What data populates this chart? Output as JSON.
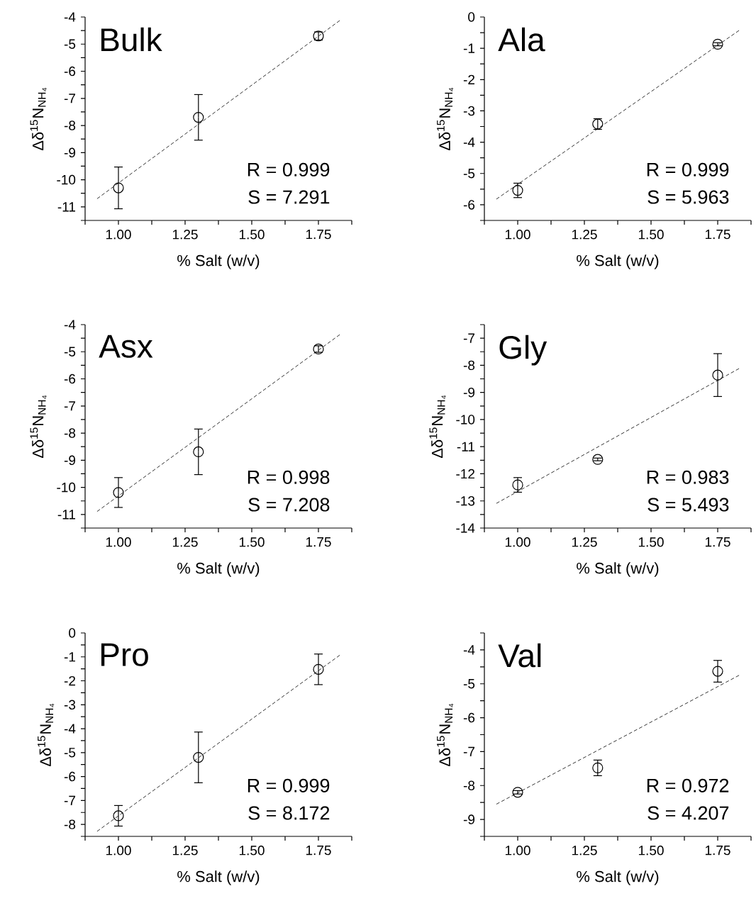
{
  "chart_data": [
    {
      "type": "scatter",
      "title": "Bulk",
      "xlabel": "% Salt (w/v)",
      "ylabel": "Δδ$^{15}$N$_{NH₄}$",
      "annotations": [
        "R = 0.999",
        "S = 7.291"
      ],
      "xlim": [
        0.875,
        1.875
      ],
      "xticks": [
        {
          "value": 0.875,
          "label": null
        },
        {
          "value": 1.0,
          "label": "1.00"
        },
        {
          "value": 1.125,
          "label": null
        },
        {
          "value": 1.25,
          "label": "1.25"
        },
        {
          "value": 1.375,
          "label": null
        },
        {
          "value": 1.5,
          "label": "1.50"
        },
        {
          "value": 1.625,
          "label": null
        },
        {
          "value": 1.75,
          "label": "1.75"
        },
        {
          "value": 1.875,
          "label": null
        }
      ],
      "ylim": [
        -11.5,
        -4
      ],
      "yticks": [
        {
          "value": -11.5,
          "label": null
        },
        -11,
        {
          "value": -10.5,
          "label": null
        },
        -10,
        {
          "value": -9.5,
          "label": null
        },
        -9,
        {
          "value": -8.5,
          "label": null
        },
        -8,
        {
          "value": -7.5,
          "label": null
        },
        -7,
        {
          "value": -6.5,
          "label": null
        },
        -6,
        {
          "value": -5.5,
          "label": null
        },
        -5,
        {
          "value": -4.5,
          "label": null
        },
        -4
      ],
      "series": [
        {
          "type": "scatter",
          "color": "#000000",
          "marker": "circle",
          "x": [
            1.0,
            1.3,
            1.75
          ],
          "values": [
            -10.3,
            -7.7,
            -4.7
          ],
          "errors": [
            0.77,
            0.84,
            0.15
          ]
        },
        {
          "type": "line",
          "color": "#000000",
          "line_style": "dashed",
          "x": [
            0.92,
            1.83
          ],
          "values": [
            -10.7,
            -4.13
          ]
        }
      ]
    },
    {
      "type": "scatter",
      "title": "Ala",
      "xlabel": "% Salt (w/v)",
      "ylabel": "Δδ$^{15}$N$_{NH₄}$",
      "annotations": [
        "R = 0.999",
        "S = 5.963"
      ],
      "xlim": [
        0.875,
        1.875
      ],
      "xticks": [
        {
          "value": 0.875,
          "label": null
        },
        {
          "value": 1.0,
          "label": "1.00"
        },
        {
          "value": 1.125,
          "label": null
        },
        {
          "value": 1.25,
          "label": "1.25"
        },
        {
          "value": 1.375,
          "label": null
        },
        {
          "value": 1.5,
          "label": "1.50"
        },
        {
          "value": 1.625,
          "label": null
        },
        {
          "value": 1.75,
          "label": "1.75"
        },
        {
          "value": 1.875,
          "label": null
        }
      ],
      "ylim": [
        -6.5,
        0
      ],
      "yticks": [
        {
          "value": -6.5,
          "label": null
        },
        -6,
        {
          "value": -5.5,
          "label": null
        },
        -5,
        {
          "value": -4.5,
          "label": null
        },
        -4,
        {
          "value": -3.5,
          "label": null
        },
        -3,
        {
          "value": -2.5,
          "label": null
        },
        -2,
        {
          "value": -1.5,
          "label": null
        },
        -1,
        {
          "value": -0.5,
          "label": null
        },
        0
      ],
      "series": [
        {
          "type": "scatter",
          "color": "#000000",
          "marker": "circle",
          "x": [
            1.0,
            1.3,
            1.75
          ],
          "values": [
            -5.54,
            -3.42,
            -0.87
          ],
          "errors": [
            0.23,
            0.17,
            0.05
          ]
        },
        {
          "type": "line",
          "color": "#000000",
          "line_style": "dashed",
          "x": [
            0.92,
            1.83
          ],
          "values": [
            -5.82,
            -0.43
          ]
        }
      ]
    },
    {
      "type": "scatter",
      "title": "Asx",
      "xlabel": "% Salt (w/v)",
      "ylabel": "Δδ$^{15}$N$_{NH₄}$",
      "annotations": [
        "R = 0.998",
        "S = 7.208"
      ],
      "xlim": [
        0.875,
        1.875
      ],
      "xticks": [
        {
          "value": 0.875,
          "label": null
        },
        {
          "value": 1.0,
          "label": "1.00"
        },
        {
          "value": 1.125,
          "label": null
        },
        {
          "value": 1.25,
          "label": "1.25"
        },
        {
          "value": 1.375,
          "label": null
        },
        {
          "value": 1.5,
          "label": "1.50"
        },
        {
          "value": 1.625,
          "label": null
        },
        {
          "value": 1.75,
          "label": "1.75"
        },
        {
          "value": 1.875,
          "label": null
        }
      ],
      "ylim": [
        -11.5,
        -4
      ],
      "yticks": [
        {
          "value": -11.5,
          "label": null
        },
        -11,
        {
          "value": -10.5,
          "label": null
        },
        -10,
        {
          "value": -9.5,
          "label": null
        },
        -9,
        {
          "value": -8.5,
          "label": null
        },
        -8,
        {
          "value": -7.5,
          "label": null
        },
        -7,
        {
          "value": -6.5,
          "label": null
        },
        -6,
        {
          "value": -5.5,
          "label": null
        },
        -5,
        {
          "value": -4.5,
          "label": null
        },
        -4
      ],
      "series": [
        {
          "type": "scatter",
          "color": "#000000",
          "marker": "circle",
          "x": [
            1.0,
            1.3,
            1.75
          ],
          "values": [
            -10.19,
            -8.69,
            -4.9
          ],
          "errors": [
            0.55,
            0.84,
            0.12
          ]
        },
        {
          "type": "line",
          "color": "#000000",
          "line_style": "dashed",
          "x": [
            0.92,
            1.83
          ],
          "values": [
            -10.89,
            -4.37
          ]
        }
      ]
    },
    {
      "type": "scatter",
      "title": "Gly",
      "xlabel": "% Salt (w/v)",
      "ylabel": "Δδ$^{15}$N$_{NH₄}$",
      "annotations": [
        "R = 0.983",
        "S = 5.493"
      ],
      "xlim": [
        0.875,
        1.875
      ],
      "xticks": [
        {
          "value": 0.875,
          "label": null
        },
        {
          "value": 1.0,
          "label": "1.00"
        },
        {
          "value": 1.125,
          "label": null
        },
        {
          "value": 1.25,
          "label": "1.25"
        },
        {
          "value": 1.375,
          "label": null
        },
        {
          "value": 1.5,
          "label": "1.50"
        },
        {
          "value": 1.625,
          "label": null
        },
        {
          "value": 1.75,
          "label": "1.75"
        },
        {
          "value": 1.875,
          "label": null
        }
      ],
      "ylim": [
        -14,
        -6.5
      ],
      "yticks": [
        -14,
        {
          "value": -13.5,
          "label": null
        },
        -13,
        {
          "value": -12.5,
          "label": null
        },
        -12,
        {
          "value": -11.5,
          "label": null
        },
        -11,
        {
          "value": -10.5,
          "label": null
        },
        -10,
        {
          "value": -9.5,
          "label": null
        },
        -9,
        {
          "value": -8.5,
          "label": null
        },
        -8,
        {
          "value": -7.5,
          "label": null
        },
        -7,
        {
          "value": -6.5,
          "label": null
        }
      ],
      "series": [
        {
          "type": "scatter",
          "color": "#000000",
          "marker": "circle",
          "x": [
            1.0,
            1.3,
            1.75
          ],
          "values": [
            -12.41,
            -11.47,
            -8.36
          ],
          "errors": [
            0.27,
            0.05,
            0.79
          ]
        },
        {
          "type": "line",
          "color": "#000000",
          "line_style": "dashed",
          "x": [
            0.92,
            1.83
          ],
          "values": [
            -13.09,
            -8.12
          ]
        }
      ]
    },
    {
      "type": "scatter",
      "title": "Pro",
      "xlabel": "% Salt (w/v)",
      "ylabel": "Δδ$^{15}$N$_{NH₄}$",
      "annotations": [
        "R = 0.999",
        "S = 8.172"
      ],
      "xlim": [
        0.875,
        1.875
      ],
      "xticks": [
        {
          "value": 0.875,
          "label": null
        },
        {
          "value": 1.0,
          "label": "1.00"
        },
        {
          "value": 1.125,
          "label": null
        },
        {
          "value": 1.25,
          "label": "1.25"
        },
        {
          "value": 1.375,
          "label": null
        },
        {
          "value": 1.5,
          "label": "1.50"
        },
        {
          "value": 1.625,
          "label": null
        },
        {
          "value": 1.75,
          "label": "1.75"
        },
        {
          "value": 1.875,
          "label": null
        }
      ],
      "ylim": [
        -8.5,
        0
      ],
      "yticks": [
        {
          "value": -8.5,
          "label": null
        },
        -8,
        {
          "value": -7.5,
          "label": null
        },
        -7,
        {
          "value": -6.5,
          "label": null
        },
        -6,
        {
          "value": -5.5,
          "label": null
        },
        -5,
        {
          "value": -4.5,
          "label": null
        },
        -4,
        {
          "value": -3.5,
          "label": null
        },
        -3,
        {
          "value": -2.5,
          "label": null
        },
        -2,
        {
          "value": -1.5,
          "label": null
        },
        -1,
        {
          "value": -0.5,
          "label": null
        },
        0
      ],
      "series": [
        {
          "type": "scatter",
          "color": "#000000",
          "marker": "circle",
          "x": [
            1.0,
            1.3,
            1.75
          ],
          "values": [
            -7.64,
            -5.2,
            -1.52
          ],
          "errors": [
            0.43,
            1.06,
            0.64
          ]
        },
        {
          "type": "line",
          "color": "#000000",
          "line_style": "dashed",
          "x": [
            0.92,
            1.83
          ],
          "values": [
            -8.29,
            -0.93
          ]
        }
      ]
    },
    {
      "type": "scatter",
      "title": "Val",
      "xlabel": "% Salt (w/v)",
      "ylabel": "Δδ$^{15}$N$_{NH₄}$",
      "annotations": [
        "R = 0.972",
        "S = 4.207"
      ],
      "xlim": [
        0.875,
        1.875
      ],
      "xticks": [
        {
          "value": 0.875,
          "label": null
        },
        {
          "value": 1.0,
          "label": "1.00"
        },
        {
          "value": 1.125,
          "label": null
        },
        {
          "value": 1.25,
          "label": "1.25"
        },
        {
          "value": 1.375,
          "label": null
        },
        {
          "value": 1.5,
          "label": "1.50"
        },
        {
          "value": 1.625,
          "label": null
        },
        {
          "value": 1.75,
          "label": "1.75"
        },
        {
          "value": 1.875,
          "label": null
        }
      ],
      "ylim": [
        -9.5,
        -3.5
      ],
      "yticks": [
        {
          "value": -9.5,
          "label": null
        },
        -9,
        {
          "value": -8.5,
          "label": null
        },
        -8,
        {
          "value": -7.5,
          "label": null
        },
        -7,
        {
          "value": -6.5,
          "label": null
        },
        -6,
        {
          "value": -5.5,
          "label": null
        },
        -5,
        {
          "value": -4.5,
          "label": null
        },
        -4,
        {
          "value": -3.5,
          "label": null
        }
      ],
      "series": [
        {
          "type": "scatter",
          "color": "#000000",
          "marker": "circle",
          "x": [
            1.0,
            1.3,
            1.75
          ],
          "values": [
            -8.2,
            -7.48,
            -4.63
          ],
          "errors": [
            0.05,
            0.23,
            0.32
          ]
        },
        {
          "type": "line",
          "color": "#000000",
          "line_style": "dashed",
          "x": [
            0.92,
            1.83
          ],
          "values": [
            -8.55,
            -4.75
          ]
        }
      ]
    }
  ]
}
